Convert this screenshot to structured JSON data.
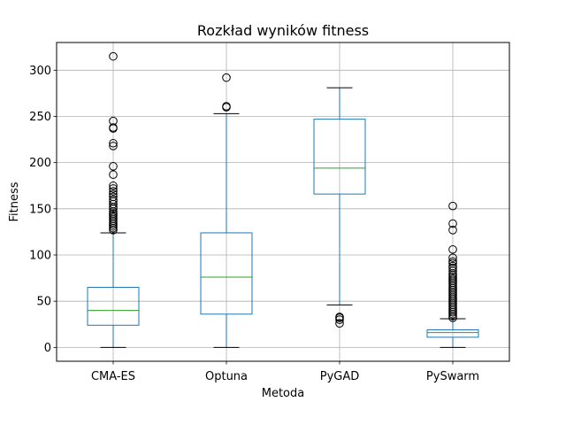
{
  "chart_data": {
    "type": "box",
    "title": "Rozkład wyników fitness",
    "xlabel": "Metoda",
    "ylabel": "Fitness",
    "ylim": [
      -15,
      330
    ],
    "yticks": [
      0,
      50,
      100,
      150,
      200,
      250,
      300
    ],
    "grid": true,
    "categories": [
      "CMA-ES",
      "Optuna",
      "PyGAD",
      "PySwarm"
    ],
    "boxes": [
      {
        "name": "CMA-ES",
        "whislo": 0,
        "q1": 24,
        "median": 40,
        "q3": 65,
        "whishi": 124,
        "fliers": [
          127,
          129,
          131,
          133,
          135,
          137,
          139,
          141,
          143,
          145,
          147,
          150,
          152,
          155,
          158,
          160,
          163,
          166,
          169,
          172,
          175,
          187,
          196,
          218,
          221,
          237,
          238,
          245,
          315
        ]
      },
      {
        "name": "Optuna",
        "whislo": 0,
        "q1": 36,
        "median": 76,
        "q3": 124,
        "whishi": 253,
        "fliers": [
          260,
          261,
          292
        ]
      },
      {
        "name": "PyGAD",
        "whislo": 46,
        "q1": 166,
        "median": 194,
        "q3": 247,
        "whishi": 281,
        "fliers": [
          26,
          30,
          32,
          33
        ]
      },
      {
        "name": "PySwarm",
        "whislo": 0,
        "q1": 11,
        "median": 16,
        "q3": 19,
        "whishi": 31,
        "fliers": [
          32,
          34,
          36,
          38,
          40,
          42,
          44,
          46,
          48,
          50,
          52,
          54,
          56,
          58,
          60,
          62,
          64,
          66,
          68,
          70,
          72,
          74,
          76,
          78,
          80,
          83,
          86,
          88,
          91,
          93,
          97,
          106,
          127,
          134,
          153
        ]
      }
    ],
    "colors": {
      "box": "#1f77b4",
      "median": "#2ca02c",
      "whisker_cap": "#000000",
      "flier": "#000000",
      "grid": "#b0b0b0"
    }
  }
}
